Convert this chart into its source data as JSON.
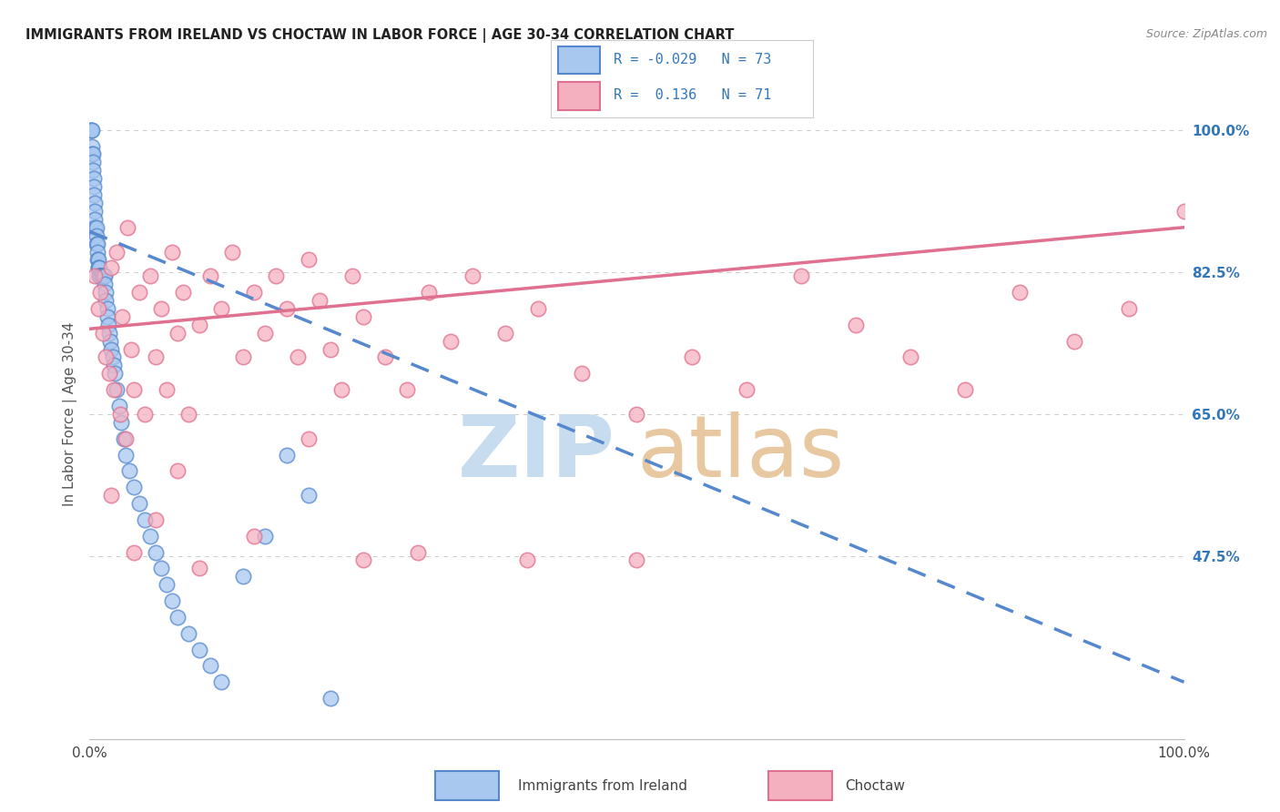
{
  "title": "IMMIGRANTS FROM IRELAND VS CHOCTAW IN LABOR FORCE | AGE 30-34 CORRELATION CHART",
  "source": "Source: ZipAtlas.com",
  "ylabel": "In Labor Force | Age 30-34",
  "x_min": 0.0,
  "x_max": 1.0,
  "y_min": 0.25,
  "y_max": 1.05,
  "ireland_R": -0.029,
  "ireland_N": 73,
  "choctaw_R": 0.136,
  "choctaw_N": 71,
  "ireland_color": "#A8C8F0",
  "choctaw_color": "#F5B0C0",
  "ireland_edge_color": "#5588CC",
  "choctaw_edge_color": "#E07090",
  "ireland_line_color": "#5588CC",
  "choctaw_line_color": "#E07090",
  "right_axis_color": "#3377BB",
  "grid_color": "#CCCCCC",
  "background_color": "#FFFFFF",
  "y_ticks": [
    0.475,
    0.65,
    0.825,
    1.0
  ],
  "y_tick_labels": [
    "47.5%",
    "65.0%",
    "82.5%",
    "100.0%"
  ],
  "x_ticks": [
    0.0,
    1.0
  ],
  "x_tick_labels": [
    "0.0%",
    "100.0%"
  ],
  "ireland_trendline_start_y": 0.875,
  "ireland_trendline_end_y": 0.32,
  "choctaw_trendline_start_y": 0.755,
  "choctaw_trendline_end_y": 0.88,
  "ireland_x": [
    0.001,
    0.001,
    0.002,
    0.002,
    0.002,
    0.003,
    0.003,
    0.003,
    0.004,
    0.004,
    0.004,
    0.005,
    0.005,
    0.005,
    0.005,
    0.006,
    0.006,
    0.006,
    0.007,
    0.007,
    0.007,
    0.008,
    0.008,
    0.008,
    0.009,
    0.009,
    0.009,
    0.01,
    0.01,
    0.01,
    0.011,
    0.011,
    0.012,
    0.012,
    0.013,
    0.013,
    0.014,
    0.014,
    0.015,
    0.015,
    0.016,
    0.016,
    0.017,
    0.018,
    0.019,
    0.02,
    0.021,
    0.022,
    0.023,
    0.025,
    0.027,
    0.029,
    0.031,
    0.033,
    0.036,
    0.04,
    0.045,
    0.05,
    0.055,
    0.06,
    0.065,
    0.07,
    0.075,
    0.08,
    0.09,
    0.1,
    0.11,
    0.12,
    0.14,
    0.16,
    0.18,
    0.2,
    0.22
  ],
  "ireland_y": [
    1.0,
    1.0,
    1.0,
    0.98,
    0.97,
    0.97,
    0.96,
    0.95,
    0.94,
    0.93,
    0.92,
    0.91,
    0.9,
    0.89,
    0.88,
    0.88,
    0.87,
    0.86,
    0.86,
    0.85,
    0.84,
    0.84,
    0.83,
    0.83,
    0.83,
    0.82,
    0.82,
    0.82,
    0.82,
    0.82,
    0.82,
    0.82,
    0.82,
    0.82,
    0.82,
    0.82,
    0.82,
    0.81,
    0.8,
    0.79,
    0.78,
    0.77,
    0.76,
    0.75,
    0.74,
    0.73,
    0.72,
    0.71,
    0.7,
    0.68,
    0.66,
    0.64,
    0.62,
    0.6,
    0.58,
    0.56,
    0.54,
    0.52,
    0.5,
    0.48,
    0.46,
    0.44,
    0.42,
    0.4,
    0.38,
    0.36,
    0.34,
    0.32,
    0.45,
    0.5,
    0.6,
    0.55,
    0.3
  ],
  "choctaw_x": [
    0.005,
    0.008,
    0.01,
    0.012,
    0.015,
    0.018,
    0.02,
    0.022,
    0.025,
    0.028,
    0.03,
    0.033,
    0.035,
    0.038,
    0.04,
    0.045,
    0.05,
    0.055,
    0.06,
    0.065,
    0.07,
    0.075,
    0.08,
    0.085,
    0.09,
    0.1,
    0.11,
    0.12,
    0.13,
    0.14,
    0.15,
    0.16,
    0.17,
    0.18,
    0.19,
    0.2,
    0.21,
    0.22,
    0.23,
    0.24,
    0.25,
    0.27,
    0.29,
    0.31,
    0.33,
    0.35,
    0.38,
    0.41,
    0.45,
    0.5,
    0.55,
    0.6,
    0.65,
    0.7,
    0.75,
    0.8,
    0.85,
    0.9,
    0.95,
    1.0,
    0.02,
    0.04,
    0.06,
    0.08,
    0.1,
    0.15,
    0.2,
    0.25,
    0.3,
    0.4,
    0.5
  ],
  "choctaw_y": [
    0.82,
    0.78,
    0.8,
    0.75,
    0.72,
    0.7,
    0.83,
    0.68,
    0.85,
    0.65,
    0.77,
    0.62,
    0.88,
    0.73,
    0.68,
    0.8,
    0.65,
    0.82,
    0.72,
    0.78,
    0.68,
    0.85,
    0.75,
    0.8,
    0.65,
    0.76,
    0.82,
    0.78,
    0.85,
    0.72,
    0.8,
    0.75,
    0.82,
    0.78,
    0.72,
    0.84,
    0.79,
    0.73,
    0.68,
    0.82,
    0.77,
    0.72,
    0.68,
    0.8,
    0.74,
    0.82,
    0.75,
    0.78,
    0.7,
    0.65,
    0.72,
    0.68,
    0.82,
    0.76,
    0.72,
    0.68,
    0.8,
    0.74,
    0.78,
    0.9,
    0.55,
    0.48,
    0.52,
    0.58,
    0.46,
    0.5,
    0.62,
    0.47,
    0.48,
    0.47,
    0.47
  ]
}
